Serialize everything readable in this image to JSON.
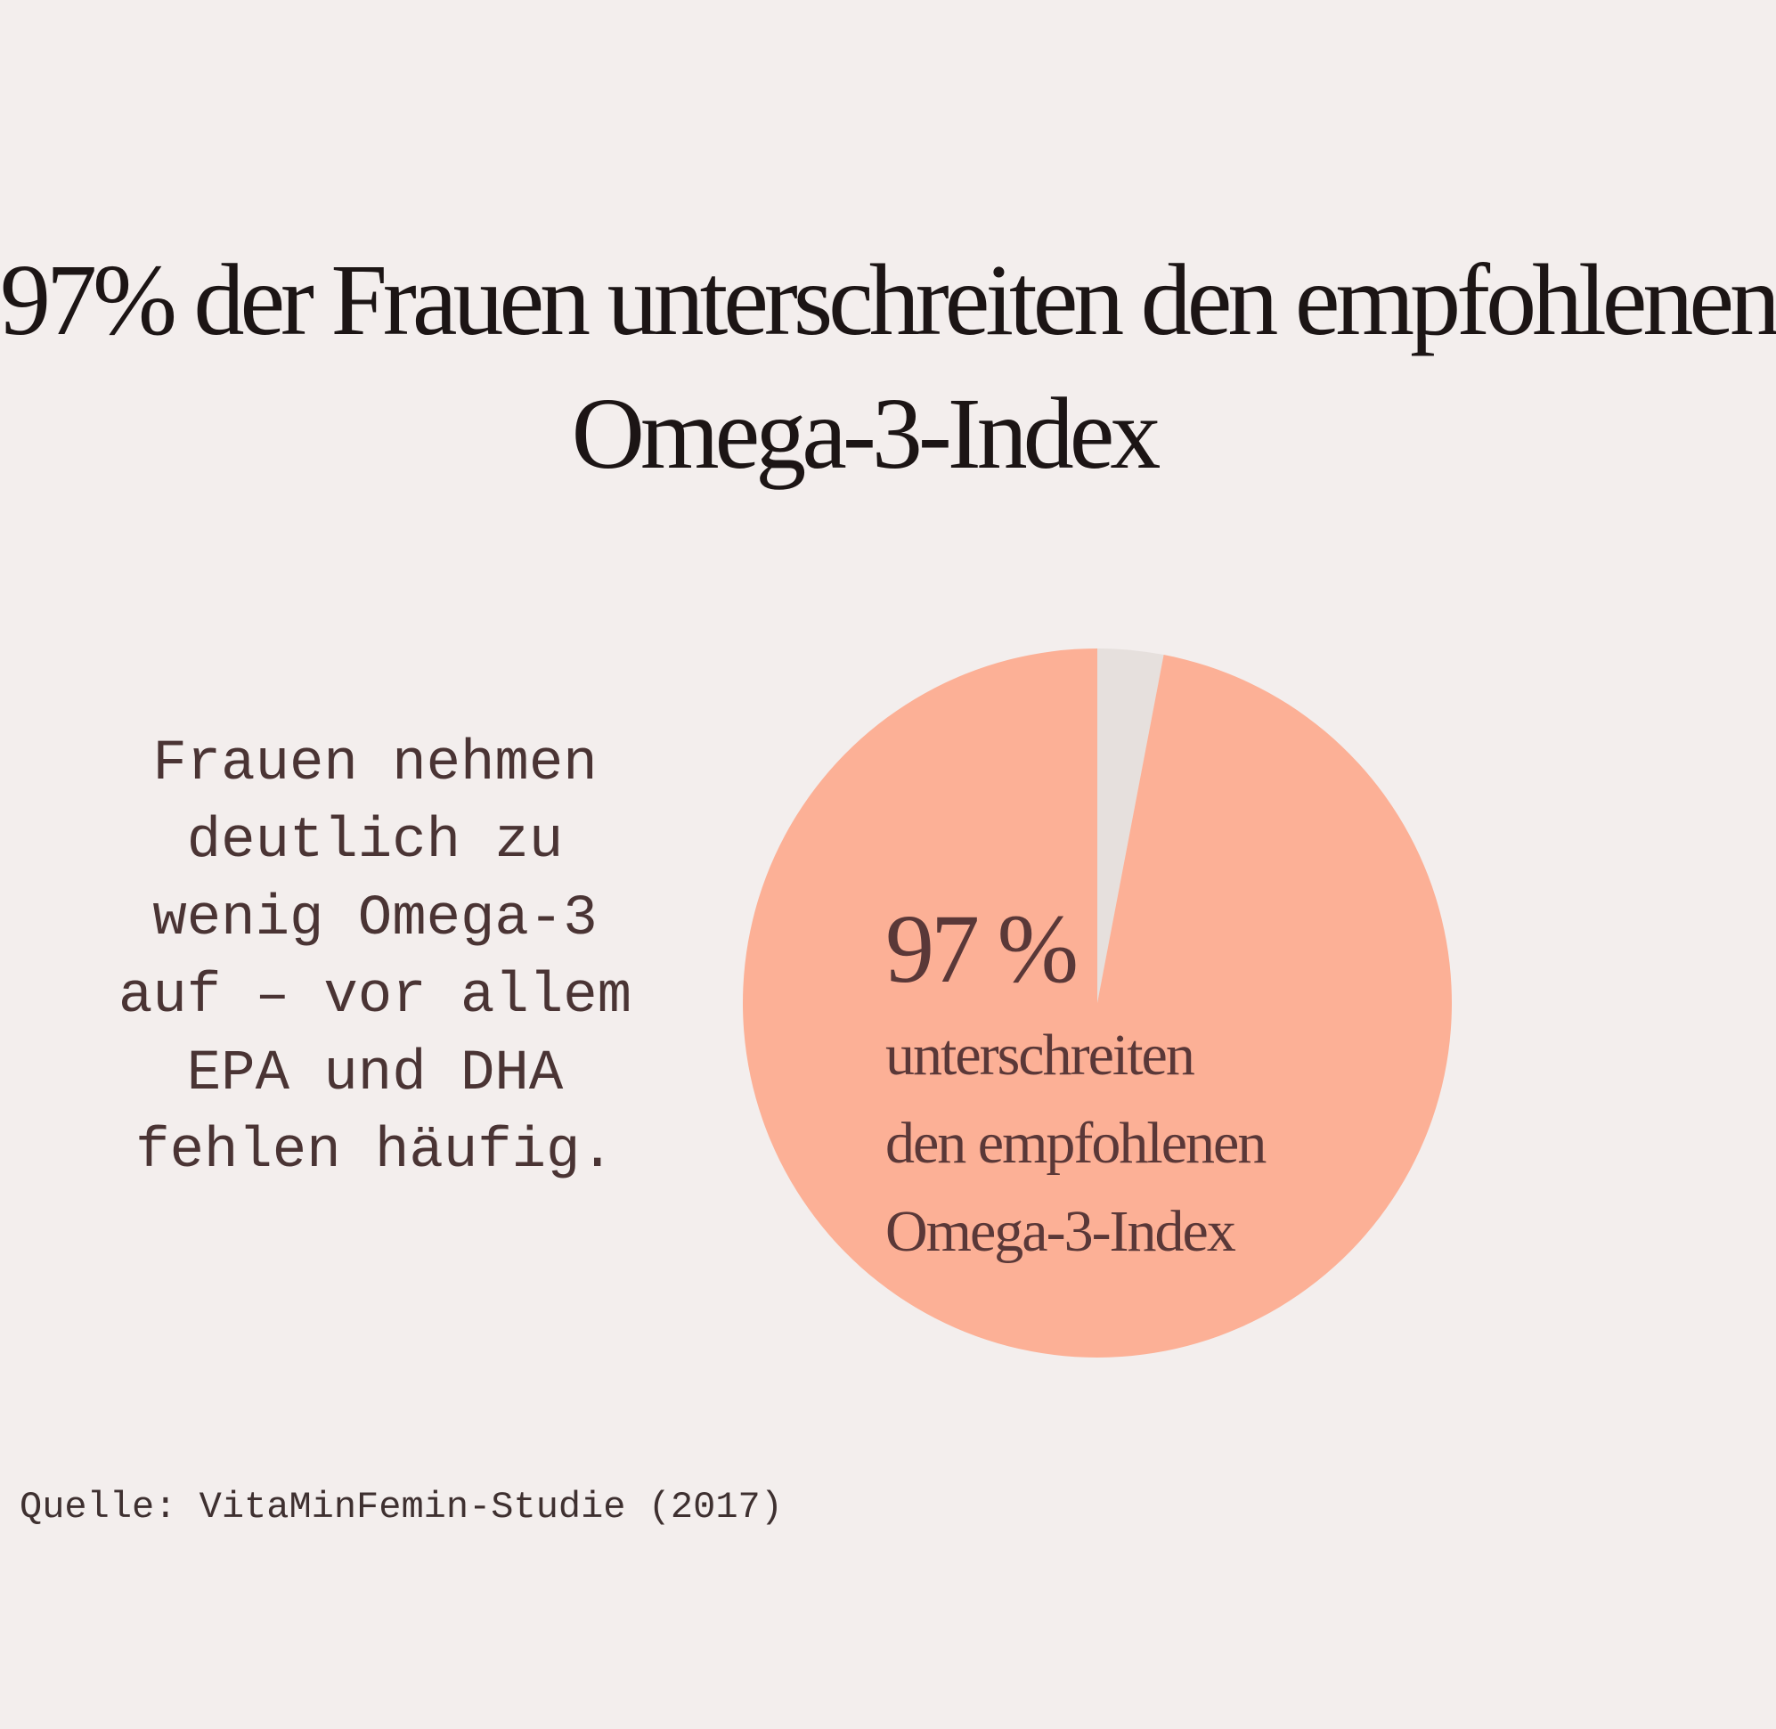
{
  "title": {
    "line1": "97% der Frauen unterschreiten den empfohlenen",
    "line2": "Omega-3-Index"
  },
  "body_text": [
    "Frauen nehmen",
    "deutlich zu",
    "wenig Omega-3",
    "auf – vor allem",
    "EPA und DHA",
    "fehlen häufig."
  ],
  "source": "Quelle: VitaMinFemin-Studie (2017)",
  "chart_data": {
    "type": "pie",
    "title": "97% der Frauen unterschreiten den empfohlenen Omega-3-Index",
    "start": "12 o'clock, clockwise",
    "slices": [
      {
        "value": 3,
        "color": "#e6e0dd"
      },
      {
        "value": 97,
        "color": "#fcb096"
      }
    ],
    "labels": {
      "value": "97 %",
      "lines": [
        "unterschreiten",
        "den empfohlenen",
        "Omega-3-Index"
      ]
    },
    "legend": "none"
  },
  "colors": {
    "background": "#f3eeed",
    "text": "#1c1515",
    "label": "#5a3838"
  }
}
